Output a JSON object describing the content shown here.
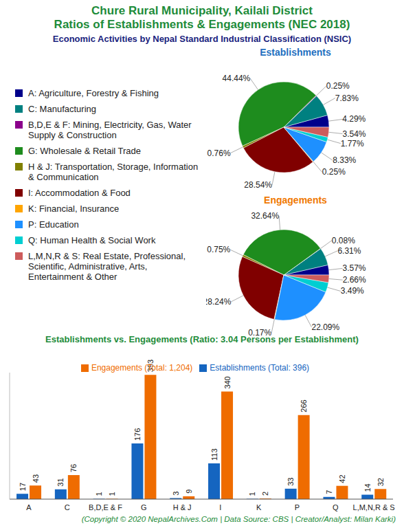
{
  "title": [
    "Chure Rural Municipality, Kailali District",
    "Ratios of Establishments & Engagements (NEC 2018)"
  ],
  "subtitle": "Economic Activities by Nepal Standard Industrial Classification (NSIC)",
  "footer": "(Copyright © 2020 NepalArchives.Com | Data Source: CBS | Creator/Analyst: Milan Karki)",
  "chart_data": [
    {
      "type": "pie",
      "legend": "left",
      "categories": [
        "A: Agriculture, Forestry & Fishing",
        "C: Manufacturing",
        "B,D,E & F: Mining, Electricity, Gas, Water Supply & Construction",
        "G: Wholesale & Retail Trade",
        "H & J: Transportation, Storage, Information & Communication",
        "I: Accommodation & Food",
        "K: Financial, Insurance",
        "P: Education",
        "Q: Human Health & Social Work",
        "L,M,N,R & S: Real Estate, Professional, Scientific, Administrative, Arts, Entertainment & Other"
      ],
      "colors": [
        "#00008b",
        "#008080",
        "#8b008b",
        "#1e8c1e",
        "#808000",
        "#800000",
        "#ffa500",
        "#1e90ff",
        "#00ced1",
        "#cd5c5c"
      ],
      "series": [
        {
          "name": "Establishments",
          "color": "#1f6fc0",
          "values": [
            4.29,
            7.83,
            0.25,
            44.44,
            0.76,
            28.54,
            0.25,
            8.33,
            1.77,
            3.54
          ],
          "value_labels": [
            "4.29%",
            "7.83%",
            "0.25%",
            "44.44%",
            "0.76%",
            "28.54%",
            "0.25%",
            "8.33%",
            "1.77%",
            "3.54%"
          ]
        },
        {
          "name": "Engagements",
          "color": "#f07800",
          "values": [
            3.57,
            6.31,
            0.08,
            32.64,
            0.75,
            28.24,
            0.17,
            22.09,
            3.49,
            2.66
          ],
          "value_labels": [
            "3.57%",
            "6.31%",
            "0.08%",
            "32.64%",
            "0.75%",
            "28.24%",
            "0.17%",
            "22.09%",
            "3.49%",
            "2.66%"
          ]
        }
      ]
    },
    {
      "type": "bar",
      "title": "Establishments vs. Engagements (Ratio: 3.04 Persons per Establishment)",
      "categories": [
        "A",
        "C",
        "B,D,E & F",
        "G",
        "H & J",
        "I",
        "K",
        "P",
        "Q",
        "L,M,N,R & S"
      ],
      "series": [
        {
          "name": "Establishments (Total: 396)",
          "color": "#1565c0",
          "values": [
            17,
            31,
            1,
            176,
            3,
            113,
            1,
            33,
            7,
            14
          ]
        },
        {
          "name": "Engagements (Total: 1,204)",
          "color": "#ef6c00",
          "values": [
            43,
            76,
            1,
            393,
            9,
            340,
            2,
            266,
            42,
            32
          ]
        }
      ],
      "ylim": [
        0,
        400
      ],
      "yticks": [
        0,
        100,
        200,
        300,
        400
      ],
      "data_labels": true,
      "tick_labels": "x",
      "grid": false,
      "legend": "top"
    }
  ]
}
